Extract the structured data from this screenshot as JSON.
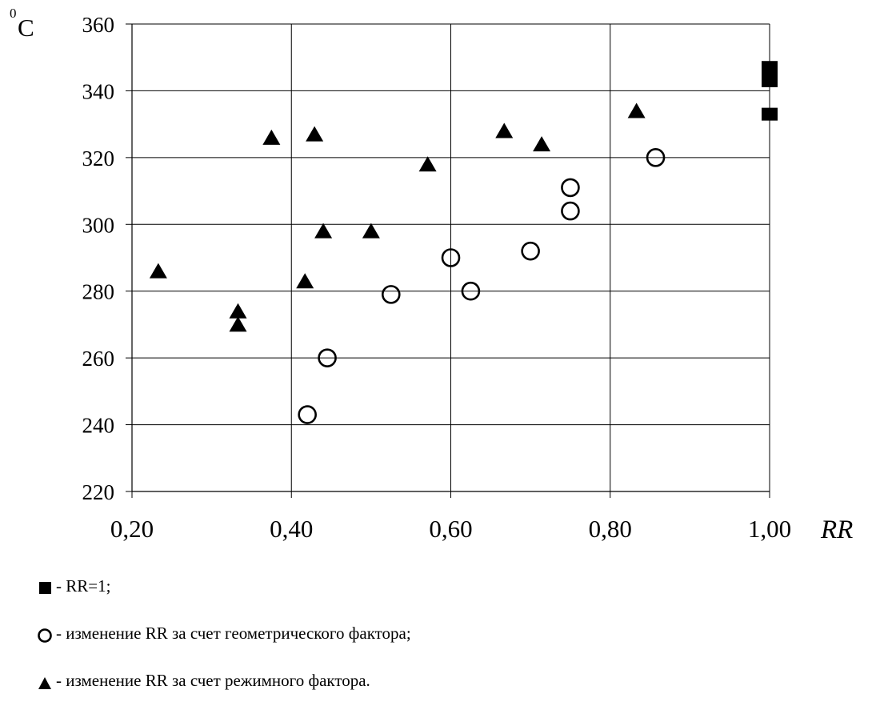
{
  "chart_data": {
    "type": "scatter",
    "ylabel": "0C",
    "ylabel_sup": "0",
    "ylabel_main": "C",
    "xlabel": "RR",
    "xlim": [
      0.2,
      1.0
    ],
    "ylim": [
      220,
      360
    ],
    "x_ticks": [
      "0,20",
      "0,40",
      "0,60",
      "0,80",
      "1,00"
    ],
    "x_tick_values": [
      0.2,
      0.4,
      0.6,
      0.8,
      1.0
    ],
    "y_ticks": [
      "220",
      "240",
      "260",
      "280",
      "300",
      "320",
      "340",
      "360"
    ],
    "y_tick_values": [
      220,
      240,
      260,
      280,
      300,
      320,
      340,
      360
    ],
    "grid": true,
    "series": [
      {
        "marker": "square",
        "color": "#000000",
        "points": [
          {
            "x": 1.0,
            "y": 347
          },
          {
            "x": 1.0,
            "y": 345
          },
          {
            "x": 1.0,
            "y": 343
          },
          {
            "x": 1.0,
            "y": 333
          }
        ]
      },
      {
        "marker": "circle",
        "color": "#000000",
        "points": [
          {
            "x": 0.42,
            "y": 243
          },
          {
            "x": 0.445,
            "y": 260
          },
          {
            "x": 0.525,
            "y": 279
          },
          {
            "x": 0.6,
            "y": 290
          },
          {
            "x": 0.625,
            "y": 280
          },
          {
            "x": 0.7,
            "y": 292
          },
          {
            "x": 0.75,
            "y": 304
          },
          {
            "x": 0.75,
            "y": 311
          },
          {
            "x": 0.857,
            "y": 320
          }
        ]
      },
      {
        "marker": "triangle",
        "color": "#000000",
        "points": [
          {
            "x": 0.233,
            "y": 286
          },
          {
            "x": 0.333,
            "y": 274
          },
          {
            "x": 0.333,
            "y": 270
          },
          {
            "x": 0.375,
            "y": 326
          },
          {
            "x": 0.417,
            "y": 283
          },
          {
            "x": 0.429,
            "y": 327
          },
          {
            "x": 0.44,
            "y": 298
          },
          {
            "x": 0.5,
            "y": 298
          },
          {
            "x": 0.571,
            "y": 318
          },
          {
            "x": 0.667,
            "y": 328
          },
          {
            "x": 0.714,
            "y": 324
          },
          {
            "x": 0.833,
            "y": 334
          }
        ]
      }
    ]
  },
  "legend": {
    "items": [
      {
        "marker": "square",
        "label": "- RR=1;"
      },
      {
        "marker": "circle",
        "label": "- изменение RR за счет геометрического фактора;"
      },
      {
        "marker": "triangle",
        "label": "- изменение RR за счет режимного фактора."
      }
    ]
  }
}
